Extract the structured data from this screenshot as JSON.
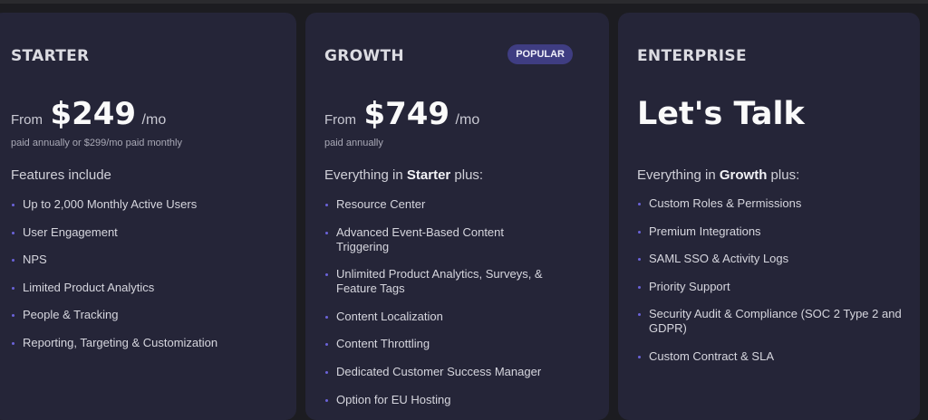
{
  "accent_color": "#6b63d9",
  "plans": [
    {
      "name": "STARTER",
      "from": "From",
      "price": "$249",
      "per": "/mo",
      "note": "paid annually or $299/mo paid monthly",
      "intro": "Features include",
      "features": [
        "Up to 2,000 Monthly Active Users",
        "User Engagement",
        "NPS",
        "Limited Product Analytics",
        "People & Tracking",
        "Reporting, Targeting & Customization"
      ]
    },
    {
      "name": "GROWTH",
      "badge": "POPULAR",
      "from": "From",
      "price": "$749",
      "per": "/mo",
      "note": "paid annually",
      "intro_pre": "Everything in ",
      "intro_bold": "Starter",
      "intro_post": " plus:",
      "features": [
        "Resource Center",
        "Advanced Event-Based Content Triggering",
        "Unlimited Product Analytics, Surveys, & Feature Tags",
        "Content Localization",
        "Content Throttling",
        "Dedicated Customer Success Manager",
        "Option for EU Hosting"
      ]
    },
    {
      "name": "ENTERPRISE",
      "headline": "Let's Talk",
      "intro_pre": "Everything in ",
      "intro_bold": "Growth",
      "intro_post": " plus:",
      "features": [
        "Custom Roles & Permissions",
        "Premium Integrations",
        "SAML SSO & Activity Logs",
        "Priority Support",
        "Security Audit & Compliance (SOC 2 Type 2 and GDPR)",
        "Custom Contract & SLA"
      ]
    }
  ]
}
